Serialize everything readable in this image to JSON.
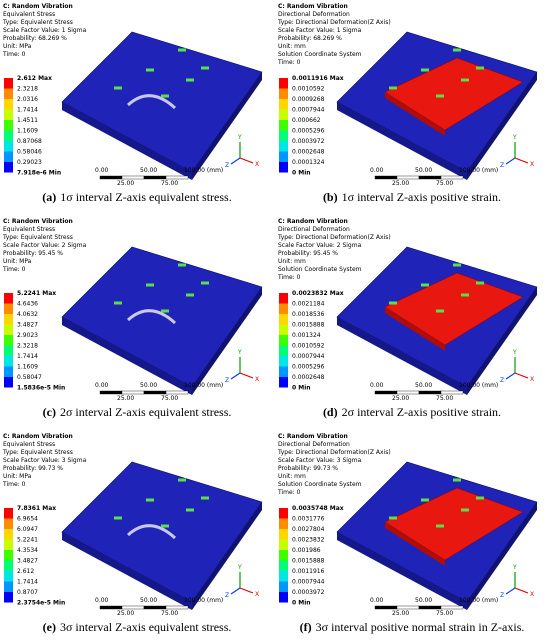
{
  "panels": [
    {
      "header": [
        "C: Random Vibration",
        "Equivalent Stress",
        "Type: Equivalent Stress",
        "Scale Factor Value: 1 Sigma",
        "Probability: 68.269 %",
        "Unit: MPa",
        "Time: 0"
      ],
      "legend": [
        "2.612 Max",
        "2.3218",
        "2.0316",
        "1.7414",
        "1.4511",
        "1.1609",
        "0.87068",
        "0.58046",
        "0.29023",
        "7.918e-6 Min"
      ],
      "scale": [
        "0.00",
        "50.00",
        "100.00 (mm)",
        "25.00",
        "75.00"
      ],
      "axes": [
        "Y",
        "Z",
        "X"
      ],
      "caption_label": "(a)",
      "caption": "1σ interval Z-axis equivalent stress."
    },
    {
      "header": [
        "C: Random Vibration",
        "Directional Deformation",
        "Type: Directional Deformation(Z Axis)",
        "Scale Factor Value: 1 Sigma",
        "Probability: 68.269 %",
        "Unit: mm",
        "Solution Coordinate System",
        "Time: 0"
      ],
      "legend": [
        "0.0011916 Max",
        "0.0010592",
        "0.0009268",
        "0.0007944",
        "0.000662",
        "0.0005296",
        "0.0003972",
        "0.0002648",
        "0.0001324",
        "0 Min"
      ],
      "scale": [
        "0.00",
        "50.00",
        "100.00 (mm)",
        "25.00",
        "75.00"
      ],
      "axes": [
        "Y",
        "Z",
        "X"
      ],
      "caption_label": "(b)",
      "caption": "1σ interval Z-axis positive strain."
    },
    {
      "header": [
        "C: Random Vibration",
        "Equivalent Stress",
        "Type: Equivalent Stress",
        "Scale Factor Value: 2 Sigma",
        "Probability: 95.45 %",
        "Unit: MPa",
        "Time: 0"
      ],
      "legend": [
        "5.2241 Max",
        "4.6436",
        "4.0632",
        "3.4827",
        "2.9023",
        "2.3218",
        "1.7414",
        "1.1609",
        "0.58047",
        "1.5836e-5 Min"
      ],
      "scale": [
        "0.00",
        "50.00",
        "100.00 (mm)",
        "25.00",
        "75.00"
      ],
      "axes": [
        "Y",
        "Z",
        "X"
      ],
      "caption_label": "(c)",
      "caption": "2σ interval Z-axis equivalent stress."
    },
    {
      "header": [
        "C: Random Vibration",
        "Directional Deformation",
        "Type: Directional Deformation(Z Axis)",
        "Scale Factor Value: 2 Sigma",
        "Probability: 95.45 %",
        "Unit: mm",
        "Solution Coordinate System",
        "Time: 0"
      ],
      "legend": [
        "0.0023832 Max",
        "0.0021184",
        "0.0018536",
        "0.0015888",
        "0.001324",
        "0.0010592",
        "0.0007944",
        "0.0005296",
        "0.0002648",
        "0 Min"
      ],
      "scale": [
        "0.00",
        "50.00",
        "100.00 (mm)",
        "25.00",
        "75.00"
      ],
      "axes": [
        "Y",
        "Z",
        "X"
      ],
      "caption_label": "(d)",
      "caption": "2σ interval Z-axis positive strain."
    },
    {
      "header": [
        "C: Random Vibration",
        "Equivalent Stress",
        "Type: Equivalent Stress",
        "Scale Factor Value: 3 Sigma",
        "Probability: 99.73 %",
        "Unit: MPa",
        "Time: 0"
      ],
      "legend": [
        "7.8361 Max",
        "6.9654",
        "6.0947",
        "5.2241",
        "4.3534",
        "3.4827",
        "2.612",
        "1.7414",
        "0.8707",
        "2.3754e-5 Min"
      ],
      "scale": [
        "0.00",
        "50.00",
        "100.00 (mm)",
        "25.00",
        "75.00"
      ],
      "axes": [
        "Y",
        "Z",
        "X"
      ],
      "caption_label": "(e)",
      "caption": "3σ interval Z-axis equivalent stress."
    },
    {
      "header": [
        "C: Random Vibration",
        "Directional Deformation",
        "Type: Directional Deformation(Z Axis)",
        "Scale Factor Value: 3 Sigma",
        "Probability: 99.73 %",
        "Unit: mm",
        "Solution Coordinate System",
        "Time: 0"
      ],
      "legend": [
        "0.0035748 Max",
        "0.0031776",
        "0.0027804",
        "0.0023832",
        "0.001986",
        "0.0015888",
        "0.0011916",
        "0.0007944",
        "0.0003972",
        "0 Min"
      ],
      "scale": [
        "0.00",
        "50.00",
        "100.00 (mm)",
        "25.00",
        "75.00"
      ],
      "axes": [
        "Y",
        "Z",
        "X"
      ],
      "caption_label": "(f)",
      "caption": "3σ interval positive normal strain in Z-axis."
    }
  ]
}
